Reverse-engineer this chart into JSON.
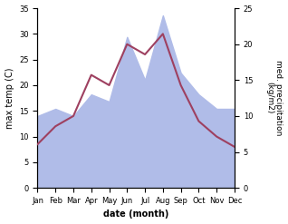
{
  "months": [
    "Jan",
    "Feb",
    "Mar",
    "Apr",
    "May",
    "Jun",
    "Jul",
    "Aug",
    "Sep",
    "Oct",
    "Nov",
    "Dec"
  ],
  "temperature": [
    8.5,
    12.0,
    14.0,
    22.0,
    20.0,
    28.0,
    26.0,
    30.0,
    20.0,
    13.0,
    10.0,
    8.0
  ],
  "precipitation": [
    10.0,
    11.0,
    10.0,
    13.0,
    12.0,
    21.0,
    15.0,
    24.0,
    16.0,
    13.0,
    11.0,
    11.0
  ],
  "temp_color": "#9e4060",
  "precip_color": "#b0bce8",
  "xlabel": "date (month)",
  "ylabel_left": "max temp (C)",
  "ylabel_right": "med. precipitation\n(kg/m2)",
  "ylim_left": [
    0,
    35
  ],
  "ylim_right": [
    0,
    25
  ],
  "yticks_left": [
    0,
    5,
    10,
    15,
    20,
    25,
    30,
    35
  ],
  "yticks_right": [
    0,
    5,
    10,
    15,
    20,
    25
  ],
  "background_color": "#ffffff"
}
